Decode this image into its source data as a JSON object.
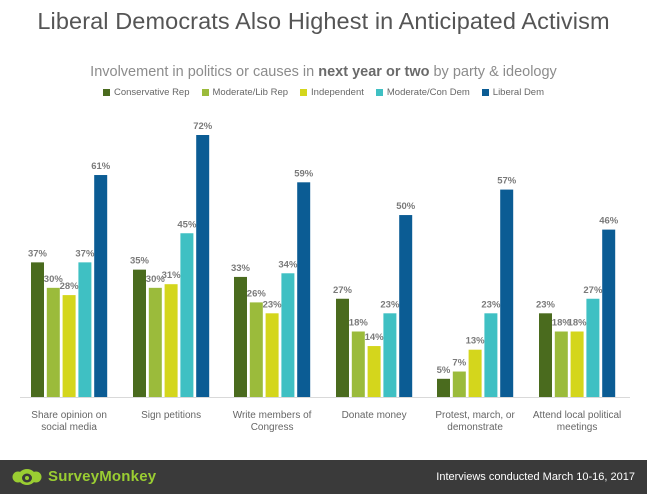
{
  "title": "Liberal Democrats Also Highest in Anticipated Activism",
  "subtitle": {
    "before": "Involvement in politics or causes in ",
    "emphasis": "next year or two",
    "after": " by party & ideology"
  },
  "footer": {
    "brand": "SurveyMonkey",
    "note": "Interviews conducted March 10-16, 2017"
  },
  "chart_data": {
    "type": "bar",
    "categories": [
      [
        "Share opinion on",
        "social media"
      ],
      [
        "Sign petitions"
      ],
      [
        "Write members of",
        "Congress"
      ],
      [
        "Donate money"
      ],
      [
        "Protest, march, or",
        "demonstrate"
      ],
      [
        "Attend local political",
        "meetings"
      ]
    ],
    "series": [
      {
        "name": "Conservative Rep",
        "color": "#4a6b1e",
        "values": [
          37,
          35,
          33,
          27,
          5,
          23
        ]
      },
      {
        "name": "Moderate/Lib Rep",
        "color": "#9bbb3b",
        "values": [
          30,
          30,
          26,
          18,
          7,
          18
        ]
      },
      {
        "name": "Independent",
        "color": "#d4d61c",
        "values": [
          28,
          31,
          23,
          14,
          13,
          18
        ]
      },
      {
        "name": "Moderate/Con Dem",
        "color": "#3fc0c3",
        "values": [
          37,
          45,
          34,
          23,
          23,
          27
        ]
      },
      {
        "name": "Liberal Dem",
        "color": "#0b5c94",
        "values": [
          61,
          72,
          59,
          50,
          57,
          46
        ]
      }
    ],
    "value_suffix": "%",
    "ylim": [
      0,
      72
    ],
    "grid": false,
    "legend_position": "top"
  }
}
